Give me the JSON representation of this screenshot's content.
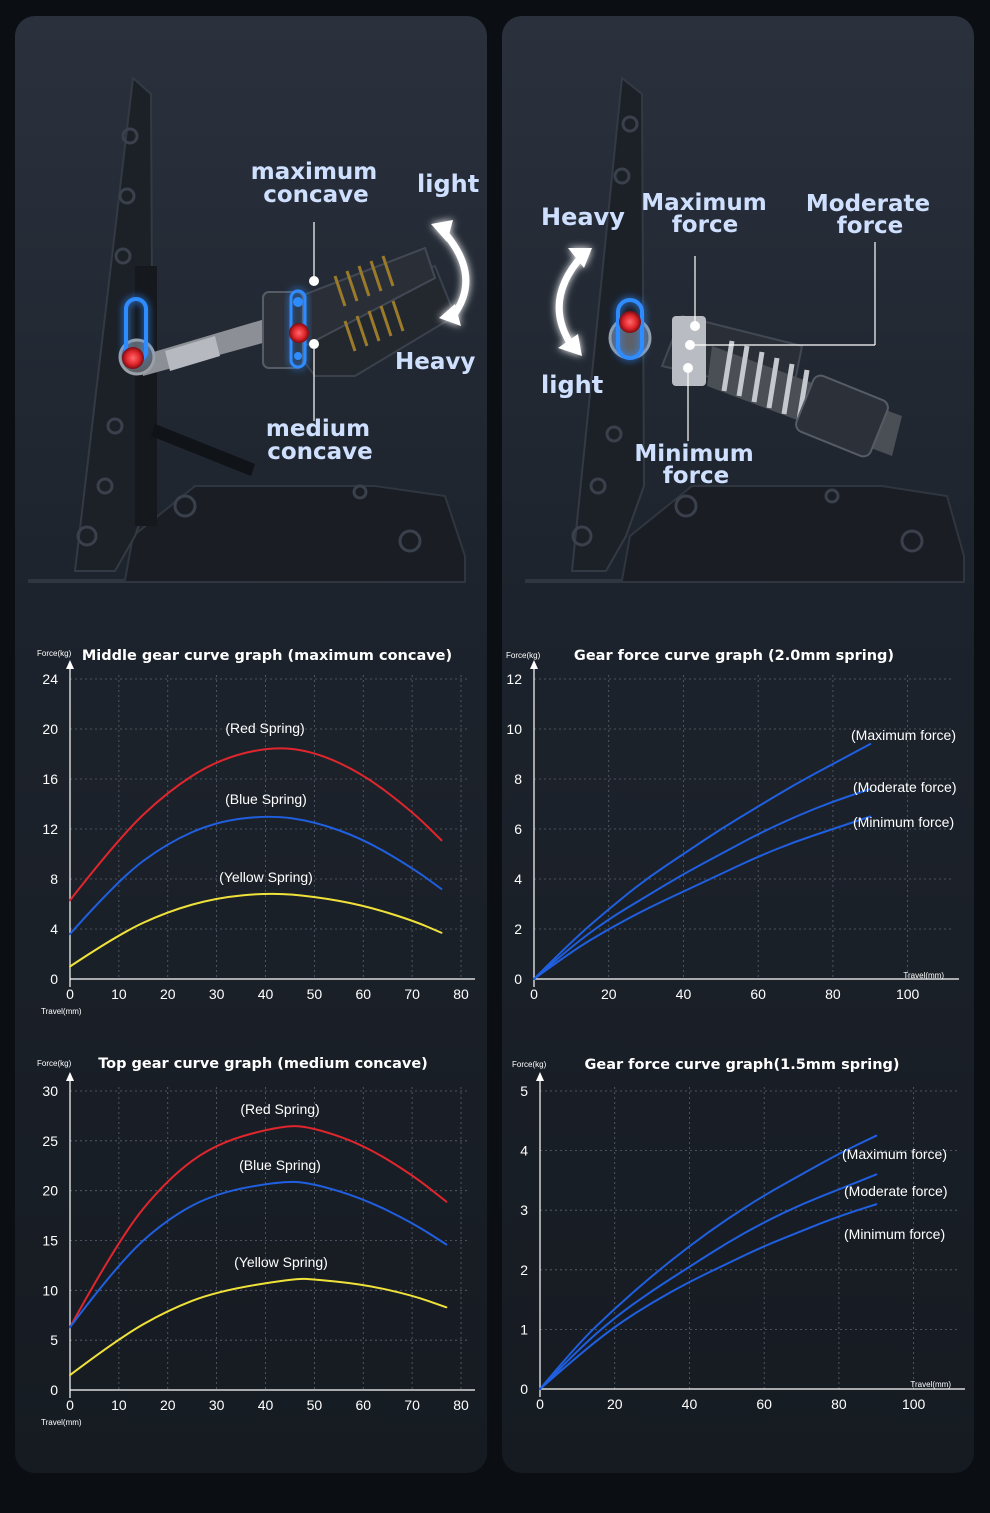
{
  "callouts": {
    "left": {
      "maximum_concave": [
        "maximum",
        "concave"
      ],
      "light": "light",
      "heavy": "Heavy",
      "medium_concave": [
        "medium",
        "concave"
      ]
    },
    "right": {
      "heavy": "Heavy",
      "maximum_force": [
        "Maximum",
        "force"
      ],
      "moderate_force": [
        "Moderate",
        "force"
      ],
      "light": "light",
      "minimum_force": [
        "Minimum",
        "force"
      ]
    }
  },
  "colors": {
    "red": "#e0262d",
    "blue": "#1f5fe0",
    "yellow": "#f0e23a",
    "callout": "#cfe0ff",
    "glow": "#2e8cff"
  },
  "chart_data": [
    {
      "id": "middle",
      "type": "line",
      "title": "Middle gear curve graph (maximum concave)",
      "ylabel": "Force(kg)",
      "xlabel": "Travel(mm)",
      "xlim": [
        0,
        80
      ],
      "ylim": [
        0,
        24
      ],
      "xticks": [
        0,
        10,
        20,
        30,
        40,
        50,
        60,
        70,
        80
      ],
      "yticks": [
        0,
        4,
        8,
        12,
        16,
        20,
        24
      ],
      "series": [
        {
          "name": "(Red Spring)",
          "color": "#e0262d",
          "x": [
            0,
            10,
            20,
            30,
            41,
            50,
            60,
            70,
            76
          ],
          "y": [
            6.3,
            11.3,
            15.0,
            17.5,
            18.6,
            18.2,
            16.4,
            13.4,
            11.1
          ]
        },
        {
          "name": "(Blue Spring)",
          "color": "#1f5fe0",
          "x": [
            0,
            10,
            20,
            30,
            41,
            50,
            60,
            70,
            76
          ],
          "y": [
            3.6,
            8.0,
            10.9,
            12.6,
            13.1,
            12.6,
            11.2,
            8.9,
            7.2
          ]
        },
        {
          "name": "(Yellow Spring)",
          "color": "#f0e23a",
          "x": [
            0,
            10,
            20,
            30,
            41,
            50,
            60,
            70,
            76
          ],
          "y": [
            1.0,
            3.6,
            5.4,
            6.5,
            6.9,
            6.6,
            5.9,
            4.7,
            3.7
          ]
        }
      ]
    },
    {
      "id": "force20",
      "type": "line",
      "title": "Gear force curve graph (2.0mm spring)",
      "ylabel": "Force(kg)",
      "xlabel": "Travel(mm)",
      "xlim": [
        0,
        110
      ],
      "ylim": [
        0,
        12
      ],
      "xticks": [
        0,
        20,
        40,
        60,
        80,
        100
      ],
      "yticks": [
        0,
        2,
        4,
        6,
        8,
        10,
        12
      ],
      "series": [
        {
          "name": "(Maximum force)",
          "color": "#1f5fe0",
          "x": [
            0,
            10,
            20,
            30,
            40,
            50,
            60,
            70,
            80,
            90
          ],
          "y": [
            0,
            1.5,
            2.8,
            4.0,
            5.0,
            6.0,
            6.9,
            7.8,
            8.6,
            9.4
          ]
        },
        {
          "name": "(Moderate force)",
          "color": "#1f5fe0",
          "x": [
            0,
            10,
            20,
            30,
            40,
            50,
            60,
            70,
            80,
            90
          ],
          "y": [
            0,
            1.3,
            2.4,
            3.3,
            4.2,
            5.0,
            5.8,
            6.5,
            7.1,
            7.6
          ]
        },
        {
          "name": "(Minimum force)",
          "color": "#1f5fe0",
          "x": [
            0,
            10,
            20,
            30,
            40,
            50,
            60,
            70,
            80,
            90
          ],
          "y": [
            0,
            1.1,
            2.0,
            2.8,
            3.5,
            4.2,
            4.9,
            5.5,
            6.0,
            6.5
          ]
        }
      ]
    },
    {
      "id": "top",
      "type": "line",
      "title": "Top gear curve graph (medium concave)",
      "ylabel": "Force(kg)",
      "xlabel": "Travel(mm)",
      "xlim": [
        0,
        80
      ],
      "ylim": [
        0,
        30
      ],
      "xticks": [
        0,
        10,
        20,
        30,
        40,
        50,
        60,
        70,
        80
      ],
      "yticks": [
        0,
        5,
        10,
        15,
        20,
        25,
        30
      ],
      "series": [
        {
          "name": "(Red Spring)",
          "color": "#e0262d",
          "x": [
            0,
            10,
            20,
            30,
            44,
            50,
            60,
            70,
            77
          ],
          "y": [
            6.3,
            15.2,
            21.2,
            24.8,
            26.6,
            26.3,
            24.6,
            21.6,
            18.9
          ]
        },
        {
          "name": "(Blue Spring)",
          "color": "#1f5fe0",
          "x": [
            0,
            10,
            20,
            30,
            44,
            50,
            60,
            70,
            77
          ],
          "y": [
            6.3,
            12.8,
            17.2,
            19.8,
            21.0,
            20.7,
            19.2,
            16.8,
            14.6
          ]
        },
        {
          "name": "(Yellow Spring)",
          "color": "#f0e23a",
          "x": [
            0,
            10,
            20,
            30,
            46,
            50,
            60,
            70,
            77
          ],
          "y": [
            1.5,
            5.2,
            8.0,
            9.9,
            11.2,
            11.1,
            10.6,
            9.5,
            8.3
          ]
        }
      ]
    },
    {
      "id": "force15",
      "type": "line",
      "title": "Gear force curve graph(1.5mm spring)",
      "ylabel": "Force(kg)",
      "xlabel": "Travel(mm)",
      "xlim": [
        0,
        110
      ],
      "ylim": [
        0,
        5
      ],
      "xticks": [
        0,
        20,
        40,
        60,
        80,
        100
      ],
      "yticks": [
        0,
        1,
        2,
        3,
        4,
        5
      ],
      "series": [
        {
          "name": "(Maximum force)",
          "color": "#1f5fe0",
          "x": [
            0,
            10,
            20,
            30,
            40,
            50,
            60,
            70,
            80,
            90
          ],
          "y": [
            0,
            0.75,
            1.35,
            1.9,
            2.4,
            2.85,
            3.25,
            3.6,
            3.95,
            4.25
          ]
        },
        {
          "name": "(Moderate force)",
          "color": "#1f5fe0",
          "x": [
            0,
            10,
            20,
            30,
            40,
            50,
            60,
            70,
            80,
            90
          ],
          "y": [
            0,
            0.65,
            1.2,
            1.65,
            2.05,
            2.45,
            2.8,
            3.1,
            3.35,
            3.6
          ]
        },
        {
          "name": "(Minimum force)",
          "color": "#1f5fe0",
          "x": [
            0,
            10,
            20,
            30,
            40,
            50,
            60,
            70,
            80,
            90
          ],
          "y": [
            0,
            0.55,
            1.05,
            1.45,
            1.8,
            2.1,
            2.4,
            2.65,
            2.9,
            3.1
          ]
        }
      ]
    }
  ]
}
